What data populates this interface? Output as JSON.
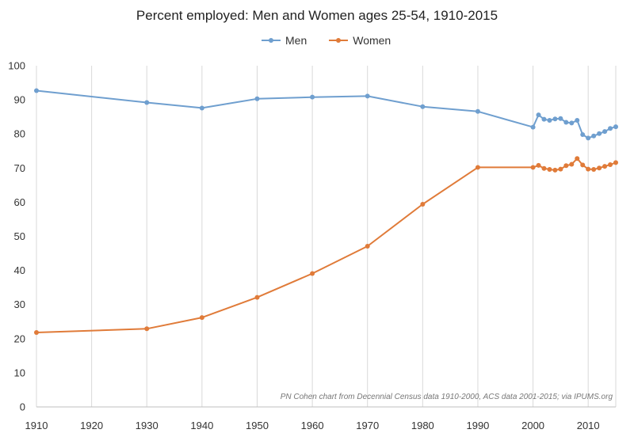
{
  "chart_data": {
    "type": "line",
    "title": "Percent employed: Men and Women ages 25-54, 1910-2015",
    "xlabel": "",
    "ylabel": "",
    "xlim": [
      1910,
      2015
    ],
    "ylim": [
      0,
      100
    ],
    "xticks": [
      1910,
      1920,
      1930,
      1940,
      1950,
      1960,
      1970,
      1980,
      1990,
      2000,
      2010
    ],
    "yticks": [
      0,
      10,
      20,
      30,
      40,
      50,
      60,
      70,
      80,
      90,
      100
    ],
    "grid": "vertical",
    "legend_position": "top",
    "annotation": "PN Cohen chart from Decennial Census data 1910-2000, ACS data 2001-2015; via IPUMS.org",
    "series": [
      {
        "name": "Men",
        "color": "#6f9fcf",
        "points": [
          [
            1910,
            92.7
          ],
          [
            1930,
            89.2
          ],
          [
            1940,
            87.6
          ],
          [
            1950,
            90.3
          ],
          [
            1960,
            90.8
          ],
          [
            1970,
            91.1
          ],
          [
            1980,
            88.0
          ],
          [
            1990,
            86.6
          ],
          [
            2000,
            82.0
          ],
          [
            2001,
            85.6
          ],
          [
            2002,
            84.3
          ],
          [
            2003,
            84.0
          ],
          [
            2004,
            84.4
          ],
          [
            2005,
            84.5
          ],
          [
            2006,
            83.4
          ],
          [
            2007,
            83.2
          ],
          [
            2008,
            84.0
          ],
          [
            2009,
            79.8
          ],
          [
            2010,
            78.8
          ],
          [
            2011,
            79.4
          ],
          [
            2012,
            80.1
          ],
          [
            2013,
            80.7
          ],
          [
            2014,
            81.6
          ],
          [
            2015,
            82.1
          ]
        ]
      },
      {
        "name": "Women",
        "color": "#e07b39",
        "points": [
          [
            1910,
            21.8
          ],
          [
            1930,
            22.9
          ],
          [
            1940,
            26.2
          ],
          [
            1950,
            32.1
          ],
          [
            1960,
            39.1
          ],
          [
            1970,
            47.1
          ],
          [
            1980,
            59.4
          ],
          [
            1990,
            70.2
          ],
          [
            2000,
            70.2
          ],
          [
            2001,
            70.8
          ],
          [
            2002,
            69.9
          ],
          [
            2003,
            69.6
          ],
          [
            2004,
            69.4
          ],
          [
            2005,
            69.7
          ],
          [
            2006,
            70.7
          ],
          [
            2007,
            71.1
          ],
          [
            2008,
            72.8
          ],
          [
            2009,
            70.9
          ],
          [
            2010,
            69.7
          ],
          [
            2011,
            69.6
          ],
          [
            2012,
            70.0
          ],
          [
            2013,
            70.5
          ],
          [
            2014,
            71.0
          ],
          [
            2015,
            71.6
          ]
        ]
      }
    ]
  }
}
